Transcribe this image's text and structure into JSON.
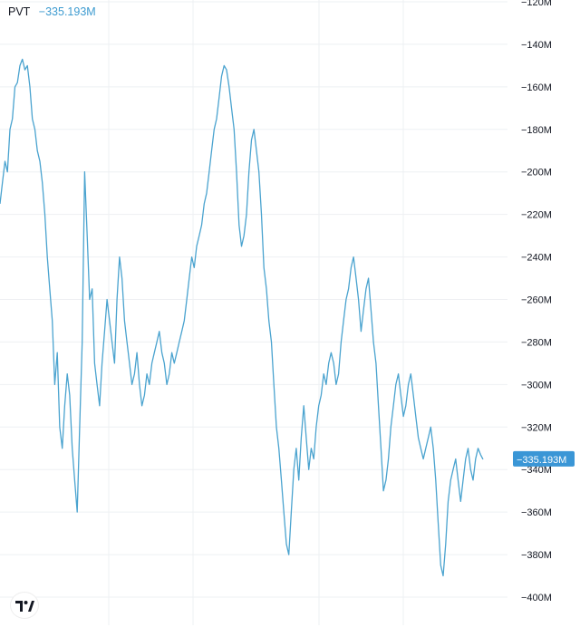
{
  "legend": {
    "symbol": "PVT",
    "value": "−335.193M"
  },
  "price_label": "−335.193M",
  "logo_icon": "tradingview-logo-icon",
  "colors": {
    "line": "#4aa3cf",
    "label_bg": "#3a96d6",
    "grid": "#eef0f3",
    "axis_text": "#131722"
  },
  "chart_data": {
    "type": "line",
    "title": "",
    "xlabel": "",
    "ylabel": "",
    "ylim": [
      -410,
      -120
    ],
    "y_ticks": [
      -120,
      -140,
      -160,
      -180,
      -200,
      -220,
      -240,
      -260,
      -280,
      -300,
      -320,
      -340,
      -360,
      -380,
      -400
    ],
    "y_tick_labels": [
      "−120M",
      "−140M",
      "−160M",
      "−180M",
      "−200M",
      "−220M",
      "−240M",
      "−260M",
      "−280M",
      "−300M",
      "−320M",
      "−340M",
      "−360M",
      "−380M",
      "−400M"
    ],
    "last_value": -335.193,
    "grid": true,
    "series": [
      {
        "values": [
          -215,
          -205,
          -195,
          -200,
          -180,
          -175,
          -160,
          -158,
          -150,
          -147,
          -152,
          -150,
          -160,
          -175,
          -180,
          -190,
          -195,
          -205,
          -220,
          -240,
          -255,
          -270,
          -300,
          -285,
          -320,
          -330,
          -310,
          -295,
          -305,
          -330,
          -345,
          -360,
          -320,
          -280,
          -200,
          -230,
          -260,
          -255,
          -290,
          -300,
          -310,
          -290,
          -275,
          -260,
          -270,
          -280,
          -290,
          -260,
          -240,
          -250,
          -270,
          -280,
          -290,
          -300,
          -295,
          -285,
          -300,
          -310,
          -305,
          -295,
          -300,
          -290,
          -285,
          -280,
          -275,
          -285,
          -290,
          -300,
          -295,
          -285,
          -290,
          -285,
          -280,
          -275,
          -270,
          -260,
          -250,
          -240,
          -245,
          -235,
          -230,
          -225,
          -215,
          -210,
          -200,
          -190,
          -180,
          -175,
          -165,
          -155,
          -150,
          -152,
          -160,
          -170,
          -180,
          -200,
          -225,
          -235,
          -230,
          -220,
          -200,
          -185,
          -180,
          -190,
          -200,
          -220,
          -245,
          -255,
          -270,
          -280,
          -300,
          -320,
          -330,
          -345,
          -360,
          -375,
          -380,
          -360,
          -340,
          -330,
          -345,
          -325,
          -310,
          -325,
          -340,
          -330,
          -335,
          -320,
          -310,
          -305,
          -295,
          -300,
          -290,
          -285,
          -290,
          -300,
          -295,
          -280,
          -270,
          -260,
          -255,
          -245,
          -240,
          -250,
          -260,
          -275,
          -265,
          -255,
          -250,
          -265,
          -280,
          -290,
          -310,
          -330,
          -350,
          -345,
          -335,
          -320,
          -310,
          -300,
          -295,
          -305,
          -315,
          -310,
          -300,
          -295,
          -305,
          -315,
          -325,
          -330,
          -335,
          -330,
          -325,
          -320,
          -330,
          -345,
          -365,
          -385,
          -390,
          -375,
          -355,
          -345,
          -340,
          -335,
          -345,
          -355,
          -345,
          -335,
          -330,
          -340,
          -345,
          -335,
          -330,
          -333,
          -335.193
        ]
      }
    ]
  }
}
